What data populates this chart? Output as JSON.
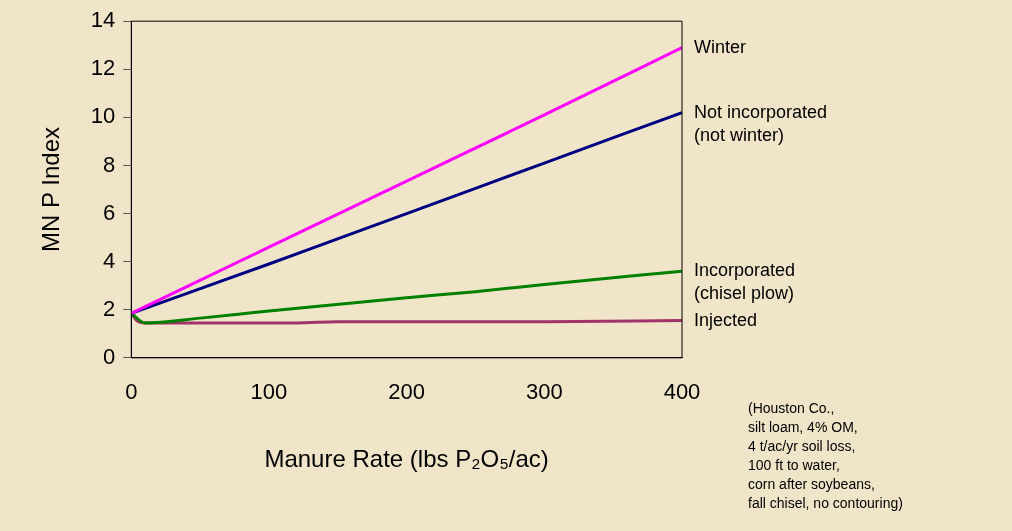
{
  "chart_data": {
    "type": "line",
    "xlabel": "Manure Rate (lbs P₂O₅/ac)",
    "ylabel": "MN P Index",
    "xlim": [
      0,
      400
    ],
    "xticks": [
      0,
      100,
      200,
      300,
      400
    ],
    "ylim": [
      0,
      14
    ],
    "yticks": [
      0,
      2,
      4,
      6,
      8,
      10,
      12,
      14
    ],
    "grid": false,
    "legend": false,
    "marker": "none",
    "line_style": "solid",
    "series": [
      {
        "name": "Winter",
        "color": "#ff00ff",
        "x": [
          0,
          100,
          200,
          300,
          400
        ],
        "values": [
          1.85,
          4.6,
          7.35,
          10.1,
          12.9
        ]
      },
      {
        "name": "Not incorporated\n(not winter)",
        "color": "#000080",
        "x": [
          0,
          100,
          200,
          300,
          400
        ],
        "values": [
          1.85,
          3.9,
          6.0,
          8.1,
          10.2
        ]
      },
      {
        "name": "Incorporated\n(chisel plow)",
        "color": "#008000",
        "x": [
          0,
          10,
          50,
          100,
          200,
          250,
          300,
          400
        ],
        "values": [
          1.85,
          1.45,
          1.65,
          1.95,
          2.5,
          2.75,
          3.05,
          3.6
        ]
      },
      {
        "name": "Injected",
        "color": "#a0336a",
        "x": [
          0,
          4,
          10,
          120,
          150,
          300,
          400
        ],
        "values": [
          1.85,
          1.55,
          1.45,
          1.45,
          1.5,
          1.5,
          1.55
        ]
      }
    ],
    "annotations": [
      "(Houston Co.,\nsilt loam, 4% OM,\n4 t/ac/yr soil loss,\n100 ft to water,\ncorn after soybeans,\nfall chisel, no contouring)"
    ]
  }
}
